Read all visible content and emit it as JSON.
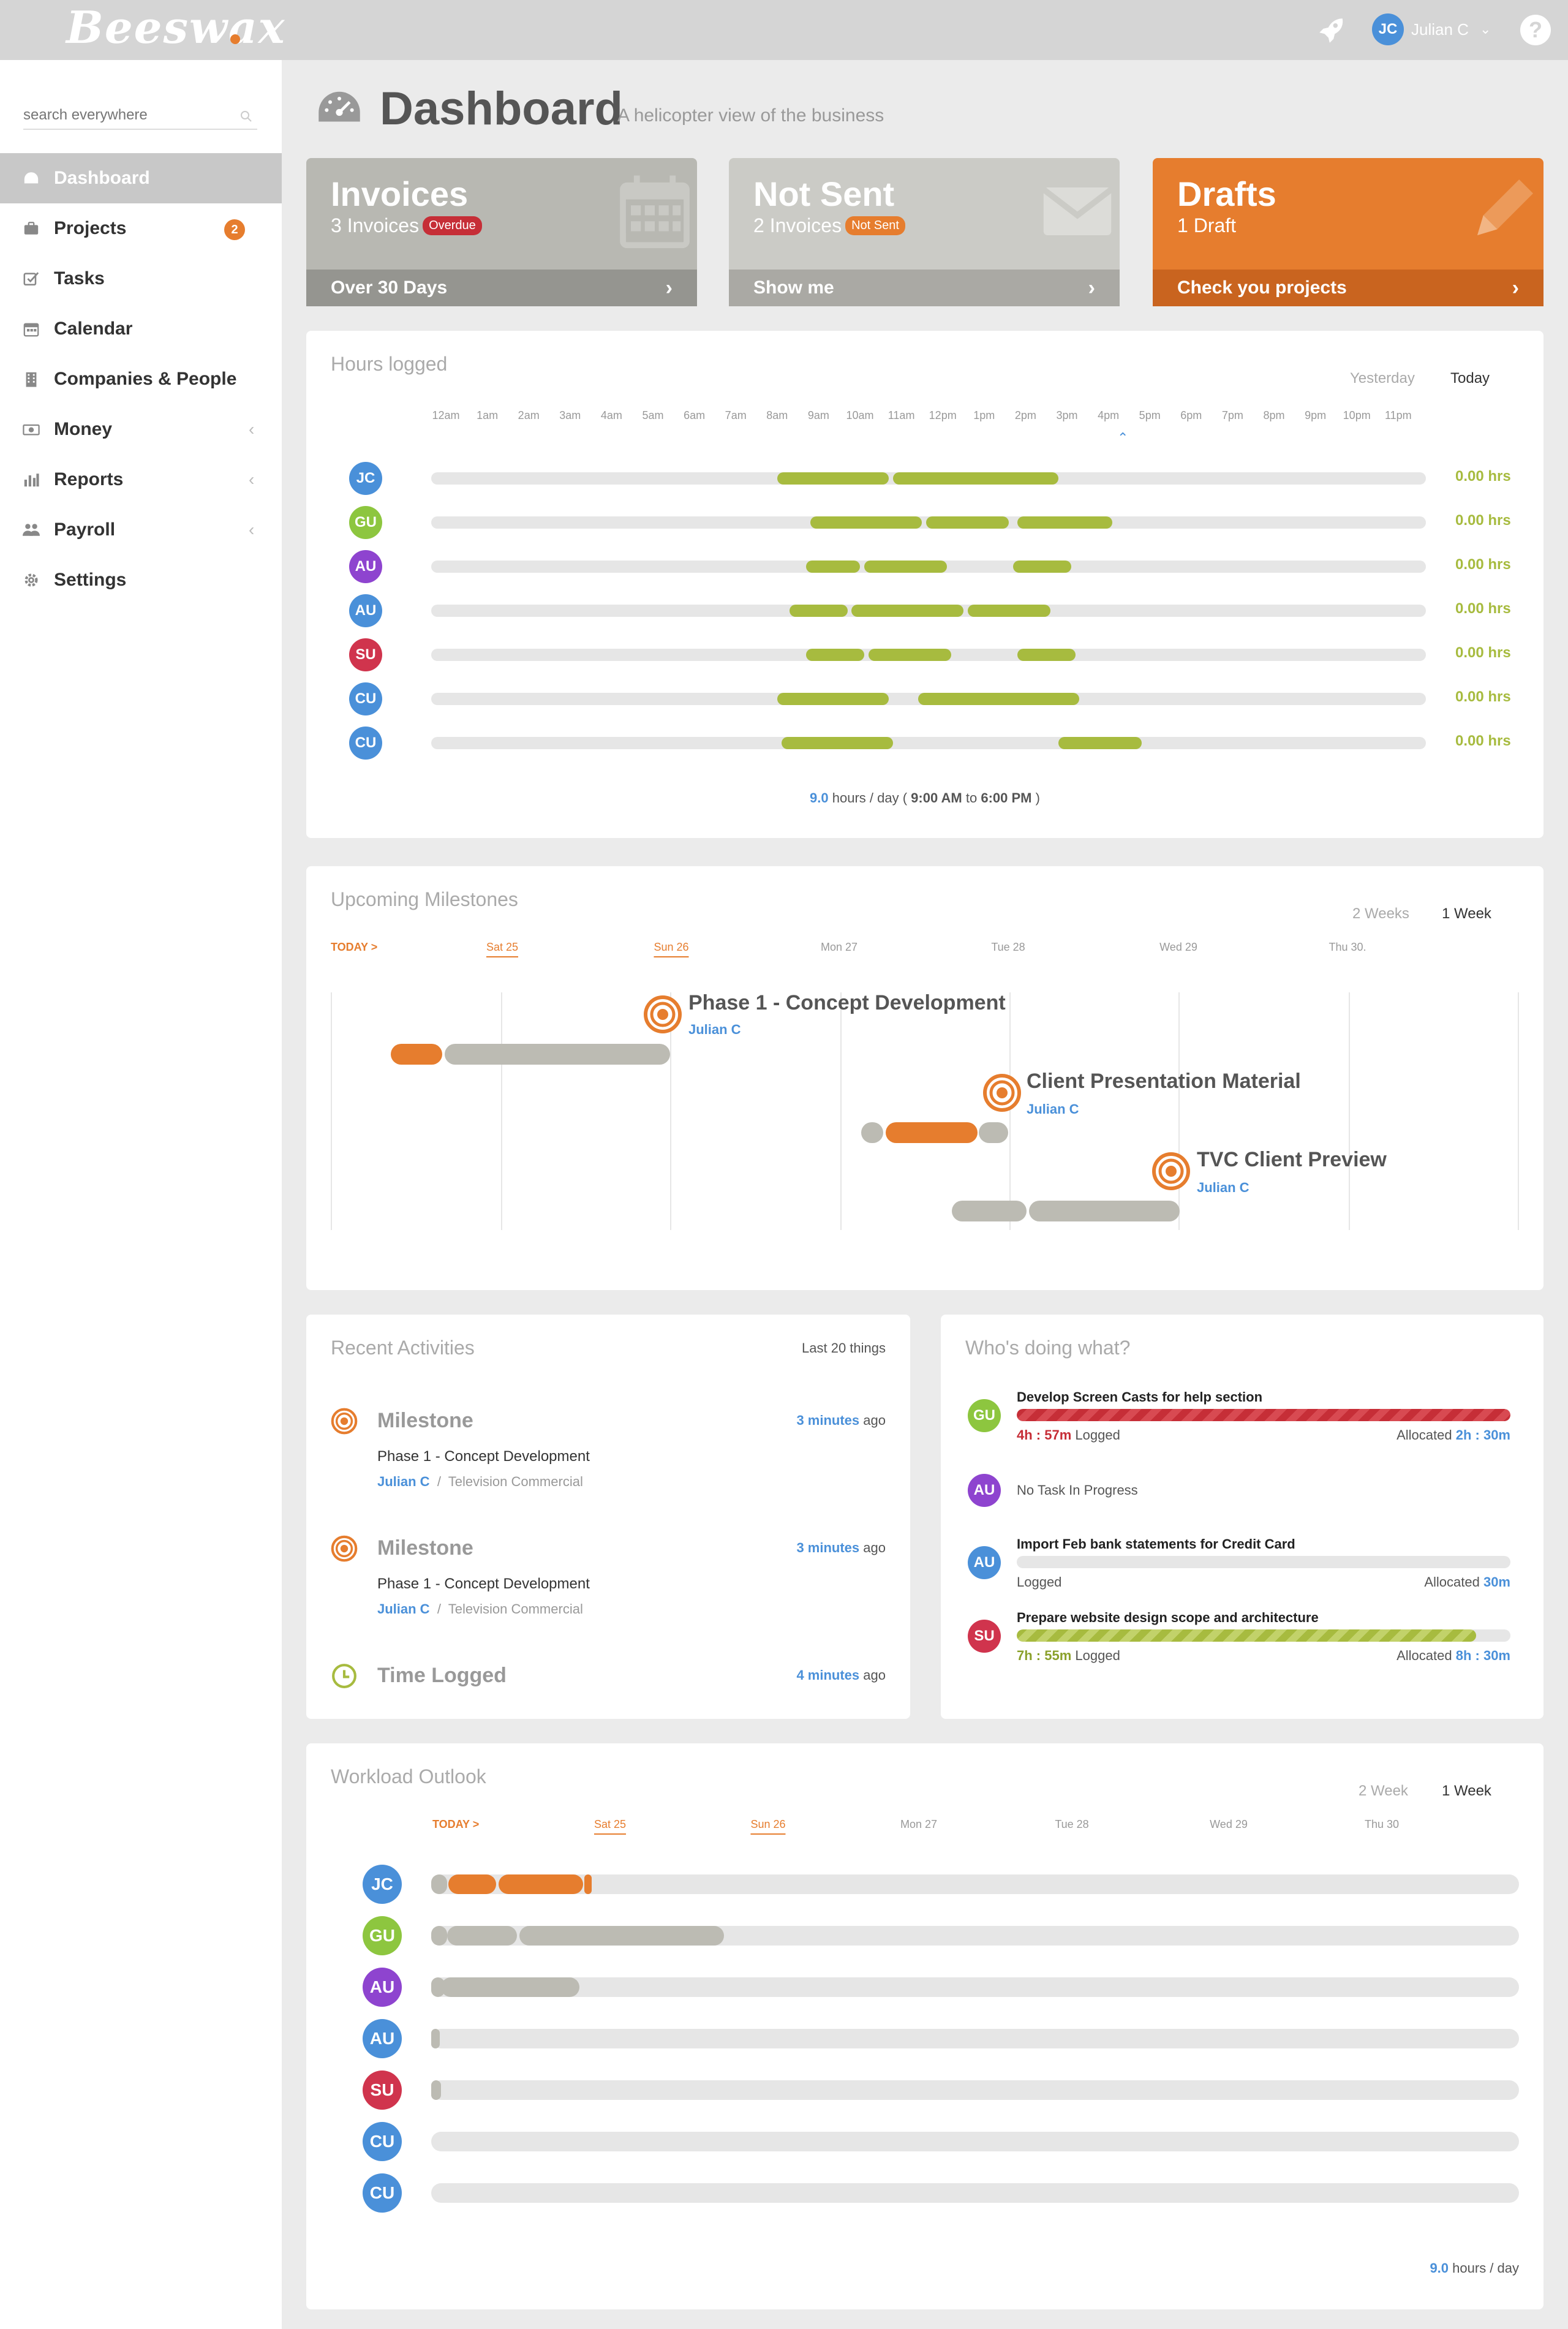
{
  "app": {
    "logo": "Beeswax"
  },
  "user": {
    "initials": "JC",
    "name": "Julian C"
  },
  "search": {
    "placeholder": "search everywhere"
  },
  "nav": [
    {
      "label": "Dashboard",
      "icon": "dashboard-icon",
      "active": true
    },
    {
      "label": "Projects",
      "icon": "briefcase-icon",
      "badge": "2"
    },
    {
      "label": "Tasks",
      "icon": "checkbox-icon"
    },
    {
      "label": "Calendar",
      "icon": "calendar-icon"
    },
    {
      "label": "Companies & People",
      "icon": "building-icon"
    },
    {
      "label": "Money",
      "icon": "money-icon",
      "caret": "‹"
    },
    {
      "label": "Reports",
      "icon": "bar-chart-icon",
      "caret": "‹"
    },
    {
      "label": "Payroll",
      "icon": "people-icon",
      "caret": "‹"
    },
    {
      "label": "Settings",
      "icon": "gear-icon"
    }
  ],
  "page": {
    "title": "Dashboard",
    "subtitle": "A helicopter view of the business"
  },
  "tiles": {
    "invoices": {
      "title": "Invoices",
      "count": "3 Invoices",
      "pill": "Overdue",
      "footer": "Over 30 Days"
    },
    "notsent": {
      "title": "Not Sent",
      "count": "2 Invoices",
      "pill": "Not Sent",
      "footer": "Show me"
    },
    "drafts": {
      "title": "Drafts",
      "count": "1 Draft",
      "footer": "Check you projects"
    }
  },
  "hours": {
    "title": "Hours logged",
    "toggle_a": "Yesterday",
    "toggle_b": "Today",
    "ticks": [
      "12am",
      "1am",
      "2am",
      "3am",
      "4am",
      "5am",
      "6am",
      "7am",
      "8am",
      "9am",
      "10am",
      "11am",
      "12pm",
      "1pm",
      "2pm",
      "3pm",
      "4pm",
      "5pm",
      "6pm",
      "7pm",
      "8pm",
      "9pm",
      "10pm",
      "11pm"
    ],
    "rows": [
      {
        "initials": "JC",
        "color": "#4a90d9",
        "hrs": "0.00 hrs",
        "segs": [
          [
            8.0,
            10.7
          ],
          [
            10.8,
            14.8
          ]
        ]
      },
      {
        "initials": "GU",
        "color": "#8dc63f",
        "hrs": "0.00 hrs",
        "segs": [
          [
            8.8,
            11.5
          ],
          [
            11.6,
            13.6
          ],
          [
            13.8,
            16.1
          ]
        ]
      },
      {
        "initials": "AU",
        "color": "#8e44cf",
        "hrs": "0.00 hrs",
        "segs": [
          [
            8.7,
            10.0
          ],
          [
            10.1,
            12.1
          ],
          [
            13.7,
            15.1
          ]
        ]
      },
      {
        "initials": "AU",
        "color": "#4a90d9",
        "hrs": "0.00 hrs",
        "segs": [
          [
            8.3,
            9.7
          ],
          [
            9.8,
            12.5
          ],
          [
            12.6,
            14.6
          ]
        ]
      },
      {
        "initials": "SU",
        "color": "#d0344d",
        "hrs": "0.00 hrs",
        "segs": [
          [
            8.7,
            10.1
          ],
          [
            10.2,
            12.2
          ],
          [
            13.8,
            15.2
          ]
        ]
      },
      {
        "initials": "CU",
        "color": "#4a90d9",
        "hrs": "0.00 hrs",
        "segs": [
          [
            8.0,
            10.7
          ],
          [
            11.4,
            15.3
          ]
        ]
      },
      {
        "initials": "CU",
        "color": "#4a90d9",
        "hrs": "0.00 hrs",
        "segs": [
          [
            8.1,
            10.8
          ],
          [
            14.8,
            16.8
          ]
        ]
      }
    ],
    "foot_hours": "9.0",
    "foot_text": "hours / day (",
    "foot_start": "9:00 AM",
    "foot_to": "to",
    "foot_end": "6:00 PM",
    "foot_close": ")"
  },
  "milestones": {
    "title": "Upcoming Milestones",
    "toggle_a": "2 Weeks",
    "toggle_b": "1 Week",
    "today": "TODAY >",
    "days": [
      "Sat 25",
      "Sun 26",
      "Mon 27",
      "Tue 28",
      "Wed 29",
      "Thu 30."
    ],
    "items": [
      {
        "name": "Phase 1 - Concept Development",
        "owner": "Julian C"
      },
      {
        "name": "Client Presentation Material",
        "owner": "Julian C"
      },
      {
        "name": "TVC Client Preview",
        "owner": "Julian C"
      }
    ]
  },
  "recent": {
    "title": "Recent Activities",
    "filter": "Last 20 things",
    "items": [
      {
        "type": "Milestone",
        "time_num": "3 minutes",
        "time_suffix": "ago",
        "title": "Phase 1 - Concept Development",
        "owner": "Julian C",
        "sep": "/",
        "project": "Television Commercial"
      },
      {
        "type": "Milestone",
        "time_num": "3 minutes",
        "time_suffix": "ago",
        "title": "Phase 1 - Concept Development",
        "owner": "Julian C",
        "sep": "/",
        "project": "Television Commercial"
      },
      {
        "type": "Time Logged",
        "time_num": "4 minutes",
        "time_suffix": "ago"
      }
    ]
  },
  "who": {
    "title": "Who's doing what?",
    "rows": [
      {
        "initials": "GU",
        "color": "#8dc63f",
        "task": "Develop Screen Casts for help section",
        "logged": "4h : 57m",
        "logged_label": "Logged",
        "alloc_label": "Allocated",
        "alloc": "2h : 30m",
        "progress": 1.0
      },
      {
        "initials": "AU",
        "color": "#8e44cf",
        "none": "No Task In Progress"
      },
      {
        "initials": "AU",
        "color": "#4a90d9",
        "task": "Import Feb bank statements for Credit Card",
        "logged_label": "Logged",
        "alloc_label": "Allocated",
        "alloc": "30m",
        "progress": 0
      },
      {
        "initials": "SU",
        "color": "#d0344d",
        "task": "Prepare website design scope and architecture",
        "logged": "7h : 55m",
        "logged_label": "Logged",
        "alloc_label": "Allocated",
        "alloc": "8h : 30m",
        "progress": 0.93
      }
    ]
  },
  "workload": {
    "title": "Workload Outlook",
    "toggle_a": "2 Week",
    "toggle_b": "1 Week",
    "today": "TODAY >",
    "days": [
      "Sat 25",
      "Sun 26",
      "Mon 27",
      "Tue 28",
      "Wed 29",
      "Thu 30"
    ],
    "rows": [
      {
        "initials": "JC",
        "color": "#4a90d9"
      },
      {
        "initials": "GU",
        "color": "#8dc63f"
      },
      {
        "initials": "AU",
        "color": "#8e44cf"
      },
      {
        "initials": "AU",
        "color": "#4a90d9"
      },
      {
        "initials": "SU",
        "color": "#d0344d"
      },
      {
        "initials": "CU",
        "color": "#4a90d9"
      },
      {
        "initials": "CU",
        "color": "#4a90d9"
      }
    ],
    "foot_hours": "9.0",
    "foot_text": "hours / day"
  }
}
